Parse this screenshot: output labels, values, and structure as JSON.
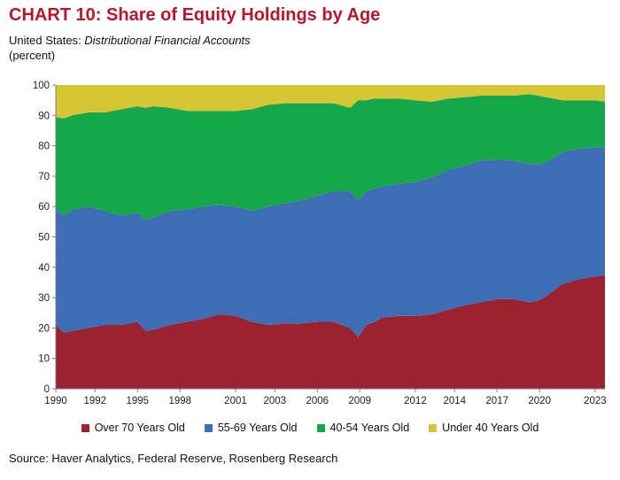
{
  "title": "CHART 10: Share of Equity Holdings by Age",
  "subtitle_prefix": "United States: ",
  "subtitle_italic": "Distributional Financial Accounts",
  "unit": "(percent)",
  "source": "Source: Haver Analytics, Federal Reserve, Rosenberg Research",
  "chart_data": {
    "type": "area",
    "stacked": true,
    "ylim": [
      0,
      100
    ],
    "xlim": [
      1990,
      2023.6
    ],
    "x_ticks": [
      1990,
      1992.4,
      1995,
      1997.6,
      2001,
      2003.4,
      2006,
      2008.6,
      2012,
      2014.4,
      2017,
      2019.6,
      2023
    ],
    "x_tick_labels": [
      "1990",
      "1992",
      "1995",
      "1998",
      "2001",
      "2003",
      "2006",
      "2009",
      "2012",
      "2014",
      "2017",
      "2020",
      "2023"
    ],
    "y_ticks": [
      0,
      10,
      20,
      30,
      40,
      50,
      60,
      70,
      80,
      90,
      100
    ],
    "grid": false,
    "legend_position": "bottom",
    "x": [
      1990,
      1990.5,
      1991,
      1992,
      1993,
      1994,
      1995,
      1995.5,
      1996,
      1997,
      1998,
      1999,
      2000,
      2001,
      2002,
      2003,
      2004,
      2005,
      2006,
      2007,
      2008,
      2008.5,
      2009,
      2009.5,
      2010,
      2011,
      2012,
      2013,
      2014,
      2015,
      2016,
      2017,
      2018,
      2019,
      2019.5,
      2020,
      2021,
      2022,
      2023,
      2023.6
    ],
    "series": [
      {
        "name": "Over 70 Years Old",
        "color": "#9b2231",
        "values": [
          21,
          18.5,
          19,
          20,
          21,
          21,
          22,
          19,
          19.5,
          21,
          22,
          23,
          24.5,
          24,
          22,
          21,
          21.5,
          21.5,
          22,
          22,
          20,
          17,
          21,
          22,
          23.5,
          24,
          24,
          24.5,
          26,
          27.5,
          28.5,
          29.5,
          29.5,
          28.5,
          29,
          30.5,
          34.5,
          36,
          37,
          37.5
        ]
      },
      {
        "name": "55-69 Years Old",
        "color": "#3e6db3",
        "values": [
          38,
          38.5,
          40,
          40,
          37.5,
          36,
          36,
          36.5,
          37,
          37.5,
          37,
          37,
          36,
          36,
          36.5,
          39,
          39.5,
          40.5,
          41.5,
          43,
          45,
          45,
          44,
          44,
          43,
          43.5,
          44,
          45,
          46,
          46,
          46.5,
          46,
          45.5,
          45.5,
          45,
          44,
          43.5,
          43,
          42.5,
          42
        ]
      },
      {
        "name": "40-54 Years Old",
        "color": "#16a64b",
        "values": [
          30.5,
          32,
          31,
          31,
          32.5,
          35,
          35,
          37,
          36.5,
          34,
          32.5,
          31.5,
          31,
          31.5,
          33.5,
          33.5,
          33,
          32,
          30.5,
          29,
          27.5,
          33,
          30,
          29.5,
          29,
          28,
          27,
          25,
          23.5,
          22.5,
          21.5,
          21,
          21.5,
          23,
          22.5,
          21.5,
          17,
          16,
          15.5,
          15
        ]
      },
      {
        "name": "Under 40 Years Old",
        "color": "#d4c634",
        "values": [
          10.5,
          11,
          10,
          9,
          9,
          8,
          7,
          7.5,
          7,
          7.5,
          8.5,
          8.5,
          8.5,
          8.5,
          8,
          6.5,
          6,
          6,
          6,
          6,
          7.5,
          5,
          5,
          4.5,
          4.5,
          4.5,
          5,
          5.5,
          4.5,
          4,
          3.5,
          3.5,
          3.5,
          3,
          3.5,
          4,
          5,
          5,
          5,
          5.5
        ]
      }
    ]
  },
  "colors": {
    "title": "#b5172c"
  }
}
